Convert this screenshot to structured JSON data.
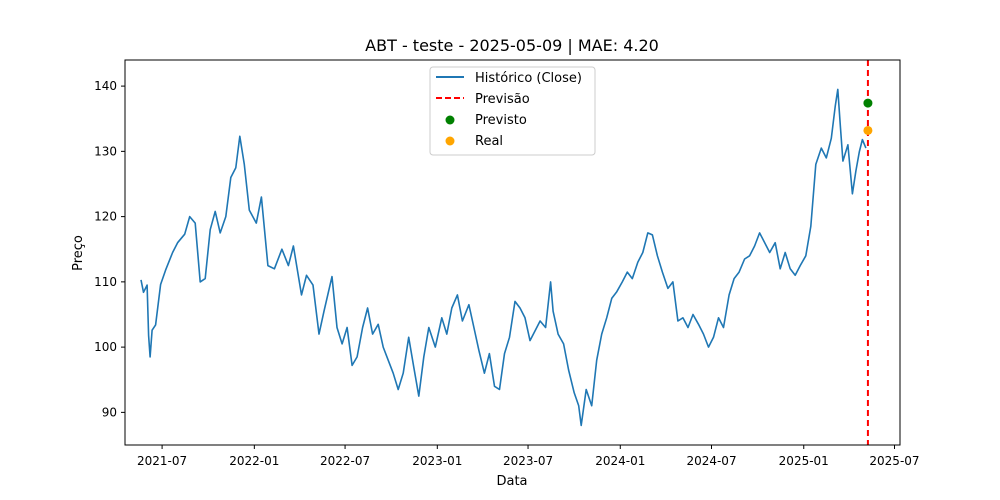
{
  "chart_data": {
    "type": "line",
    "title": "ABT - teste - 2025-05-09 | MAE: 4.20",
    "xlabel": "Data",
    "ylabel": "Preço",
    "xlim": [
      "2021-04-18",
      "2025-07-12"
    ],
    "ylim": [
      85,
      144
    ],
    "x_ticks": [
      "2021-07",
      "2022-01",
      "2022-07",
      "2023-01",
      "2023-07",
      "2024-01",
      "2024-07",
      "2025-01",
      "2025-07"
    ],
    "y_ticks": [
      90,
      100,
      110,
      120,
      130,
      140
    ],
    "grid": false,
    "legend_position": "top-center",
    "colors": {
      "historico": "#1f77b4",
      "previsao": "#ff0000",
      "previsto": "#008000",
      "real": "#ffa500"
    },
    "legend": [
      {
        "key": "historico",
        "label": "Histórico (Close)",
        "kind": "line"
      },
      {
        "key": "previsao",
        "label": "Previsão",
        "kind": "dashed"
      },
      {
        "key": "previsto",
        "label": "Previsto",
        "kind": "dot"
      },
      {
        "key": "real",
        "label": "Real",
        "kind": "dot"
      }
    ],
    "series": [
      {
        "name": "Histórico (Close)",
        "points": [
          [
            "2021-05-20",
            110.3
          ],
          [
            "2021-05-25",
            108.4
          ],
          [
            "2021-06-01",
            109.5
          ],
          [
            "2021-06-04",
            101.8
          ],
          [
            "2021-06-07",
            98.5
          ],
          [
            "2021-06-11",
            102.6
          ],
          [
            "2021-06-18",
            103.4
          ],
          [
            "2021-06-28",
            109.6
          ],
          [
            "2021-07-08",
            111.8
          ],
          [
            "2021-07-22",
            114.5
          ],
          [
            "2021-08-01",
            116.0
          ],
          [
            "2021-08-15",
            117.3
          ],
          [
            "2021-08-25",
            120.0
          ],
          [
            "2021-09-05",
            119.0
          ],
          [
            "2021-09-15",
            110.0
          ],
          [
            "2021-09-25",
            110.5
          ],
          [
            "2021-10-05",
            118.0
          ],
          [
            "2021-10-15",
            120.8
          ],
          [
            "2021-10-25",
            117.5
          ],
          [
            "2021-11-05",
            120.0
          ],
          [
            "2021-11-15",
            126.0
          ],
          [
            "2021-11-25",
            127.5
          ],
          [
            "2021-12-03",
            132.3
          ],
          [
            "2021-12-12",
            128.0
          ],
          [
            "2021-12-22",
            121.0
          ],
          [
            "2022-01-05",
            119.0
          ],
          [
            "2022-01-15",
            123.0
          ],
          [
            "2022-01-28",
            112.5
          ],
          [
            "2022-02-10",
            112.0
          ],
          [
            "2022-02-25",
            115.0
          ],
          [
            "2022-03-10",
            112.5
          ],
          [
            "2022-03-20",
            115.5
          ],
          [
            "2022-04-05",
            108.0
          ],
          [
            "2022-04-15",
            111.0
          ],
          [
            "2022-04-28",
            109.5
          ],
          [
            "2022-05-10",
            102.0
          ],
          [
            "2022-05-20",
            105.5
          ],
          [
            "2022-06-05",
            110.8
          ],
          [
            "2022-06-15",
            103.0
          ],
          [
            "2022-06-25",
            100.5
          ],
          [
            "2022-07-05",
            103.0
          ],
          [
            "2022-07-15",
            97.2
          ],
          [
            "2022-07-25",
            98.5
          ],
          [
            "2022-08-05",
            103.0
          ],
          [
            "2022-08-15",
            106.0
          ],
          [
            "2022-08-25",
            102.0
          ],
          [
            "2022-09-05",
            103.5
          ],
          [
            "2022-09-15",
            100.0
          ],
          [
            "2022-09-25",
            98.0
          ],
          [
            "2022-10-05",
            96.0
          ],
          [
            "2022-10-15",
            93.5
          ],
          [
            "2022-10-25",
            96.0
          ],
          [
            "2022-11-05",
            101.5
          ],
          [
            "2022-11-15",
            97.0
          ],
          [
            "2022-11-25",
            92.5
          ],
          [
            "2022-12-05",
            98.5
          ],
          [
            "2022-12-15",
            103.0
          ],
          [
            "2022-12-28",
            100.0
          ],
          [
            "2023-01-10",
            104.5
          ],
          [
            "2023-01-20",
            102.0
          ],
          [
            "2023-01-30",
            106.0
          ],
          [
            "2023-02-10",
            108.0
          ],
          [
            "2023-02-20",
            104.0
          ],
          [
            "2023-03-05",
            106.5
          ],
          [
            "2023-03-15",
            103.0
          ],
          [
            "2023-03-25",
            99.5
          ],
          [
            "2023-04-05",
            96.0
          ],
          [
            "2023-04-15",
            99.0
          ],
          [
            "2023-04-25",
            94.0
          ],
          [
            "2023-05-05",
            93.5
          ],
          [
            "2023-05-15",
            99.0
          ],
          [
            "2023-05-25",
            101.5
          ],
          [
            "2023-06-05",
            107.0
          ],
          [
            "2023-06-15",
            106.0
          ],
          [
            "2023-06-25",
            104.5
          ],
          [
            "2023-07-05",
            101.0
          ],
          [
            "2023-07-15",
            102.5
          ],
          [
            "2023-07-25",
            104.0
          ],
          [
            "2023-08-05",
            103.0
          ],
          [
            "2023-08-15",
            110.0
          ],
          [
            "2023-08-20",
            105.5
          ],
          [
            "2023-08-30",
            102.0
          ],
          [
            "2023-09-10",
            100.5
          ],
          [
            "2023-09-20",
            96.5
          ],
          [
            "2023-10-01",
            93.0
          ],
          [
            "2023-10-10",
            91.0
          ],
          [
            "2023-10-15",
            88.0
          ],
          [
            "2023-10-25",
            93.5
          ],
          [
            "2023-11-05",
            91.0
          ],
          [
            "2023-11-15",
            98.0
          ],
          [
            "2023-11-25",
            102.0
          ],
          [
            "2023-12-05",
            104.5
          ],
          [
            "2023-12-15",
            107.5
          ],
          [
            "2023-12-25",
            108.5
          ],
          [
            "2024-01-05",
            110.0
          ],
          [
            "2024-01-15",
            111.5
          ],
          [
            "2024-01-25",
            110.5
          ],
          [
            "2024-02-05",
            113.0
          ],
          [
            "2024-02-15",
            114.5
          ],
          [
            "2024-02-25",
            117.5
          ],
          [
            "2024-03-05",
            117.2
          ],
          [
            "2024-03-15",
            114.0
          ],
          [
            "2024-03-25",
            111.5
          ],
          [
            "2024-04-05",
            109.0
          ],
          [
            "2024-04-15",
            110.0
          ],
          [
            "2024-04-25",
            104.0
          ],
          [
            "2024-05-05",
            104.5
          ],
          [
            "2024-05-15",
            103.0
          ],
          [
            "2024-05-25",
            105.0
          ],
          [
            "2024-06-05",
            103.5
          ],
          [
            "2024-06-15",
            102.0
          ],
          [
            "2024-06-25",
            100.0
          ],
          [
            "2024-07-05",
            101.5
          ],
          [
            "2024-07-15",
            104.5
          ],
          [
            "2024-07-25",
            103.0
          ],
          [
            "2024-08-05",
            108.0
          ],
          [
            "2024-08-15",
            110.5
          ],
          [
            "2024-08-25",
            111.5
          ],
          [
            "2024-09-05",
            113.5
          ],
          [
            "2024-09-15",
            114.0
          ],
          [
            "2024-09-25",
            115.5
          ],
          [
            "2024-10-05",
            117.5
          ],
          [
            "2024-10-15",
            116.0
          ],
          [
            "2024-10-25",
            114.5
          ],
          [
            "2024-11-05",
            116.0
          ],
          [
            "2024-11-15",
            112.0
          ],
          [
            "2024-11-25",
            114.5
          ],
          [
            "2024-12-05",
            112.0
          ],
          [
            "2024-12-15",
            111.0
          ],
          [
            "2024-12-25",
            112.5
          ],
          [
            "2025-01-05",
            114.0
          ],
          [
            "2025-01-15",
            118.5
          ],
          [
            "2025-01-25",
            128.0
          ],
          [
            "2025-02-05",
            130.5
          ],
          [
            "2025-02-15",
            129.0
          ],
          [
            "2025-02-25",
            132.0
          ],
          [
            "2025-03-05",
            137.0
          ],
          [
            "2025-03-10",
            139.5
          ],
          [
            "2025-03-15",
            134.0
          ],
          [
            "2025-03-20",
            128.5
          ],
          [
            "2025-03-30",
            131.0
          ],
          [
            "2025-04-08",
            123.5
          ],
          [
            "2025-04-15",
            127.0
          ],
          [
            "2025-04-22",
            130.0
          ],
          [
            "2025-04-28",
            131.8
          ],
          [
            "2025-05-05",
            130.5
          ]
        ]
      }
    ],
    "forecast_date": "2025-05-09",
    "predicted": {
      "name": "Previsto",
      "date": "2025-05-09",
      "value": 137.4
    },
    "actual": {
      "name": "Real",
      "date": "2025-05-09",
      "value": 133.2
    }
  }
}
